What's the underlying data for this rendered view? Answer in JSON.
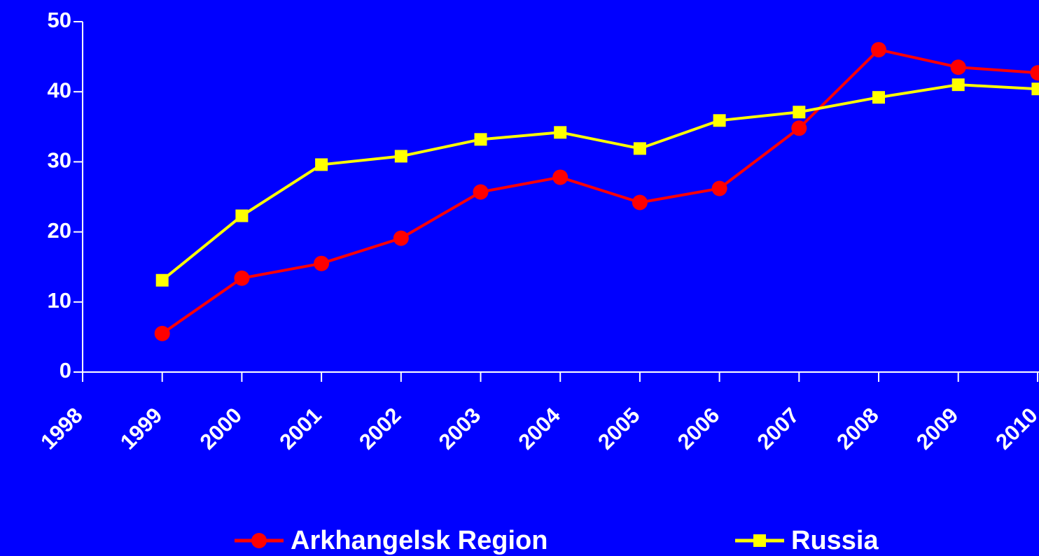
{
  "chart_data": {
    "type": "line",
    "categories": [
      "1998",
      "1999",
      "2000",
      "2001",
      "2002",
      "2003",
      "2004",
      "2005",
      "2006",
      "2007",
      "2008",
      "2009",
      "2010"
    ],
    "series": [
      {
        "name": "Arkhangelsk Region",
        "color": "#ff0000",
        "marker": "circle",
        "values": [
          null,
          5.5,
          13.4,
          15.5,
          19.1,
          25.7,
          27.8,
          24.2,
          26.2,
          34.8,
          46.0,
          43.5,
          42.7
        ]
      },
      {
        "name": "Russia",
        "color": "#ffff00",
        "marker": "square",
        "values": [
          null,
          13.1,
          22.3,
          29.6,
          30.8,
          33.2,
          34.2,
          31.9,
          35.9,
          37.1,
          39.2,
          41.0,
          40.4
        ]
      }
    ],
    "ylim": [
      0,
      50
    ],
    "yticks": [
      0,
      10,
      20,
      30,
      40,
      50
    ],
    "grid": false,
    "legend": "bottom"
  }
}
